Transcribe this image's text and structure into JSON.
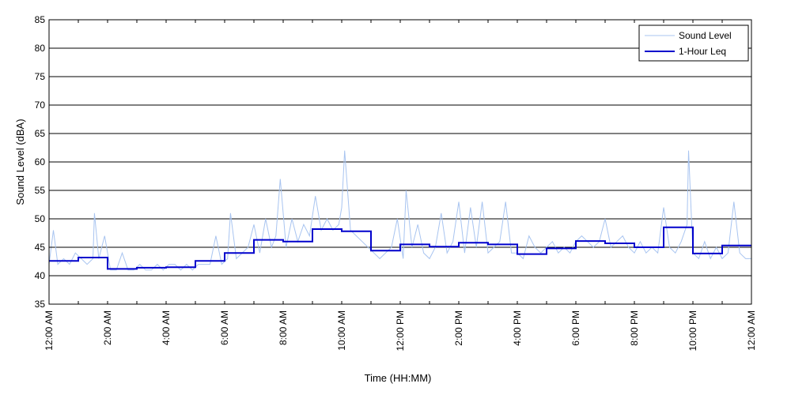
{
  "chart_data": {
    "type": "line",
    "xlabel": "Time (HH:MM)",
    "ylabel": "Sound Level (dBA)",
    "ylim": [
      35,
      85
    ],
    "xlim_hours": [
      0,
      24
    ],
    "y_ticks": [
      35,
      40,
      45,
      50,
      55,
      60,
      65,
      70,
      75,
      80,
      85
    ],
    "x_ticks": [
      {
        "hour": 0,
        "label": "12:00 AM"
      },
      {
        "hour": 2,
        "label": "2:00 AM"
      },
      {
        "hour": 4,
        "label": "4:00 AM"
      },
      {
        "hour": 6,
        "label": "6:00 AM"
      },
      {
        "hour": 8,
        "label": "8:00 AM"
      },
      {
        "hour": 10,
        "label": "10:00 AM"
      },
      {
        "hour": 12,
        "label": "12:00 PM"
      },
      {
        "hour": 14,
        "label": "2:00 PM"
      },
      {
        "hour": 16,
        "label": "4:00 PM"
      },
      {
        "hour": 18,
        "label": "6:00 PM"
      },
      {
        "hour": 20,
        "label": "8:00 PM"
      },
      {
        "hour": 22,
        "label": "10:00 PM"
      },
      {
        "hour": 24,
        "label": "12:00 AM"
      }
    ],
    "grid": "horizontal",
    "legend_position": "top-right",
    "series": [
      {
        "name": "Sound Level",
        "color": "#a8c4f0",
        "hours": [
          0,
          0.15,
          0.3,
          0.5,
          0.7,
          0.9,
          1.1,
          1.3,
          1.5,
          1.55,
          1.7,
          1.9,
          2.1,
          2.3,
          2.5,
          2.7,
          2.9,
          3.1,
          3.3,
          3.5,
          3.7,
          3.9,
          4.1,
          4.3,
          4.5,
          4.7,
          4.9,
          5.1,
          5.3,
          5.5,
          5.7,
          5.9,
          6.1,
          6.2,
          6.4,
          6.6,
          6.8,
          7.0,
          7.2,
          7.4,
          7.6,
          7.75,
          7.9,
          8.1,
          8.3,
          8.5,
          8.7,
          8.9,
          9.1,
          9.3,
          9.5,
          9.7,
          9.9,
          10.0,
          10.1,
          10.3,
          10.5,
          10.7,
          10.9,
          11.1,
          11.3,
          11.5,
          11.7,
          11.9,
          12.1,
          12.2,
          12.4,
          12.6,
          12.8,
          13.0,
          13.2,
          13.4,
          13.6,
          13.8,
          14.0,
          14.2,
          14.4,
          14.6,
          14.8,
          15.0,
          15.2,
          15.4,
          15.6,
          15.8,
          16.0,
          16.2,
          16.4,
          16.6,
          16.8,
          17.0,
          17.2,
          17.4,
          17.6,
          17.8,
          18.0,
          18.2,
          18.4,
          18.6,
          18.8,
          19.0,
          19.2,
          19.4,
          19.6,
          19.8,
          20.0,
          20.2,
          20.4,
          20.6,
          20.8,
          21.0,
          21.2,
          21.4,
          21.6,
          21.8,
          21.85,
          22.0,
          22.2,
          22.4,
          22.6,
          22.8,
          23.0,
          23.2,
          23.4,
          23.6,
          23.8,
          24.0
        ],
        "values": [
          42,
          48,
          42,
          43,
          42,
          44,
          43,
          42,
          43,
          51,
          43,
          47,
          41,
          41,
          44,
          41,
          41,
          42,
          41,
          41,
          42,
          41,
          42,
          42,
          41,
          42,
          41,
          42,
          42,
          42,
          47,
          42,
          43,
          51,
          43,
          44,
          45,
          49,
          44,
          50,
          45,
          47,
          57,
          45,
          50,
          46,
          49,
          47,
          54,
          48,
          50,
          48,
          49,
          52,
          62,
          48,
          47,
          46,
          45,
          44,
          43,
          44,
          45,
          50,
          43,
          55,
          45,
          49,
          44,
          43,
          45,
          51,
          44,
          46,
          53,
          44,
          52,
          45,
          53,
          44,
          45,
          46,
          53,
          44,
          44,
          43,
          47,
          45,
          44,
          45,
          46,
          44,
          45,
          44,
          46,
          47,
          46,
          45,
          46,
          50,
          45,
          46,
          47,
          45,
          44,
          46,
          44,
          45,
          44,
          52,
          45,
          44,
          46,
          49,
          62,
          44,
          43,
          46,
          43,
          45,
          43,
          44,
          53,
          44,
          43,
          43
        ]
      },
      {
        "name": "1-Hour Leq",
        "color": "#0000cc",
        "step": true,
        "hour_bins": [
          0,
          1,
          2,
          3,
          4,
          5,
          6,
          7,
          8,
          9,
          10,
          11,
          12,
          13,
          14,
          15,
          16,
          17,
          18,
          19,
          20,
          21,
          22,
          23
        ],
        "values": [
          42.6,
          43.2,
          41.2,
          41.4,
          41.5,
          42.6,
          44.0,
          46.3,
          46.0,
          48.2,
          47.8,
          44.4,
          45.5,
          45.1,
          45.8,
          45.5,
          43.8,
          44.8,
          46.1,
          45.7,
          45.0,
          48.5,
          43.9,
          45.3
        ]
      }
    ]
  }
}
